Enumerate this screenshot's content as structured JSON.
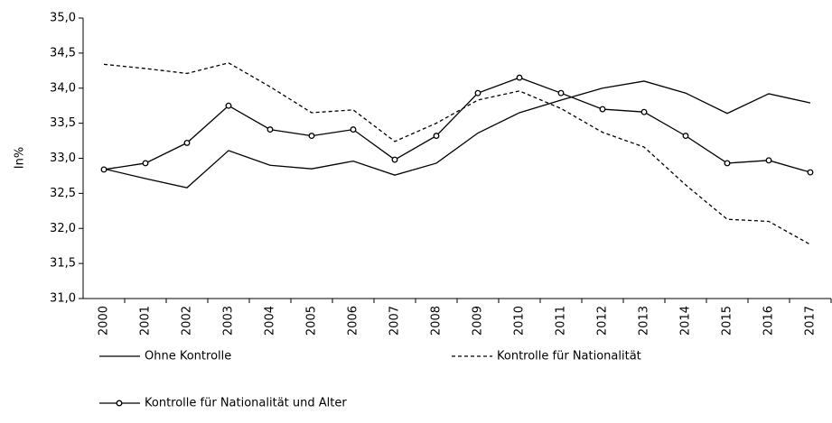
{
  "chart_data": {
    "type": "line",
    "y_label": "In%",
    "categories": [
      "2000",
      "2001",
      "2002",
      "2003",
      "2004",
      "2005",
      "2006",
      "2007",
      "2008",
      "2009",
      "2010",
      "2011",
      "2012",
      "2013",
      "2014",
      "2015",
      "2016",
      "2017"
    ],
    "series": [
      {
        "name": "Ohne Kontrolle",
        "color": "#000000",
        "dash": "solid",
        "marker": "none",
        "values": [
          32.85,
          32.71,
          32.58,
          33.11,
          32.9,
          32.85,
          32.96,
          32.76,
          32.93,
          33.36,
          33.65,
          33.83,
          34.0,
          34.1,
          33.93,
          33.64,
          33.92,
          33.79
        ]
      },
      {
        "name": "Kontrolle für Nationalität",
        "color": "#000000",
        "dash": "dashed",
        "marker": "none",
        "values": [
          34.34,
          34.28,
          34.21,
          34.36,
          34.02,
          33.65,
          33.69,
          33.24,
          33.5,
          33.83,
          33.96,
          33.71,
          33.37,
          33.16,
          32.62,
          32.13,
          32.1,
          31.77
        ]
      },
      {
        "name": "Kontrolle für Nationalität und Alter",
        "color": "#000000",
        "dash": "solid",
        "marker": "circle",
        "values": [
          32.84,
          32.93,
          33.22,
          33.75,
          33.41,
          33.32,
          33.41,
          32.98,
          33.32,
          33.93,
          34.15,
          33.93,
          33.7,
          33.66,
          33.32,
          32.93,
          32.97,
          32.8
        ]
      }
    ],
    "ylim": [
      31,
      35
    ],
    "yticks": [
      {
        "value": 31,
        "label": "31,0"
      },
      {
        "value": 31.5,
        "label": "31,5"
      },
      {
        "value": 32,
        "label": "32,0"
      },
      {
        "value": 32.5,
        "label": "32,5"
      },
      {
        "value": 33,
        "label": "33,0"
      },
      {
        "value": 33.5,
        "label": "33,5"
      },
      {
        "value": 34,
        "label": "34,0"
      },
      {
        "value": 34.5,
        "label": "34,5"
      },
      {
        "value": 35,
        "label": "35,0"
      }
    ],
    "grid": false,
    "legend": "bottom"
  }
}
